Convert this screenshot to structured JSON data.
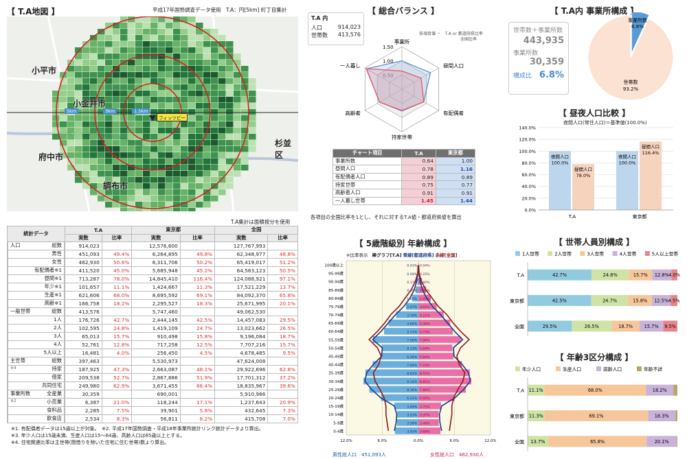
{
  "map": {
    "title": "【 T.A地図 】",
    "note": "平成17年国勢調査データ使用　T.A：円[5km] 町丁目集計",
    "place_labels": [
      "小平市",
      "小金井市",
      "府中市",
      "調布市",
      "杉並区"
    ],
    "ring_labels": [
      "5km",
      "3km",
      "1.5km"
    ],
    "center_label": "フィッツビー",
    "footer_note": "T.A集計は面積按分を使用"
  },
  "stats_table": {
    "columns": [
      "統計データ",
      "T.A",
      "東京都",
      "全国"
    ],
    "sub_columns": [
      "実数",
      "比率"
    ],
    "groups": [
      {
        "label": "人口",
        "note": "",
        "rows": [
          {
            "label": "総数",
            "v": [
              "914,023",
              "",
              "12,576,600",
              "",
              "127,767,993",
              ""
            ]
          },
          {
            "label": "男性",
            "v": [
              "451,093",
              "49.4%",
              "6,264,895",
              "49.8%",
              "62,348,977",
              "48.8%"
            ]
          },
          {
            "label": "女性",
            "v": [
              "462,930",
              "50.6%",
              "6,311,706",
              "50.2%",
              "65,419,017",
              "51.2%"
            ]
          },
          {
            "label": "有配偶者※1",
            "v": [
              "411,520",
              "45.0%",
              "5,685,948",
              "45.2%",
              "64,583,123",
              "50.5%"
            ]
          },
          {
            "label": "昼間※1",
            "v": [
              "713,287",
              "78.0%",
              "14,845,410",
              "116.4%",
              "124,088,921",
              "97.1%"
            ]
          },
          {
            "label": "年少※1",
            "v": [
              "101,657",
              "11.1%",
              "1,424,667",
              "11.3%",
              "17,521,229",
              "13.7%"
            ]
          },
          {
            "label": "生産※1",
            "v": [
              "621,606",
              "68.0%",
              "8,695,592",
              "69.1%",
              "84,092,370",
              "65.8%"
            ]
          },
          {
            "label": "高齢※1",
            "v": [
              "166,758",
              "18.2%",
              "2,295,527",
              "18.3%",
              "25,671,995",
              "20.1%"
            ]
          }
        ]
      },
      {
        "label": "一般世帯",
        "note": "",
        "rows": [
          {
            "label": "総数",
            "v": [
              "413,576",
              "",
              "5,747,460",
              "",
              "49,062,530",
              ""
            ]
          },
          {
            "label": "1人",
            "v": [
              "176,726",
              "42.7%",
              "2,444,145",
              "42.5%",
              "14,457,083",
              "29.5%"
            ]
          },
          {
            "label": "2人",
            "v": [
              "102,595",
              "24.8%",
              "1,419,109",
              "24.7%",
              "13,023,662",
              "26.5%"
            ]
          },
          {
            "label": "3人",
            "v": [
              "65,013",
              "15.7%",
              "910,498",
              "15.8%",
              "9,196,084",
              "18.7%"
            ]
          },
          {
            "label": "4人",
            "v": [
              "52,761",
              "12.8%",
              "717,258",
              "12.5%",
              "7,707,216",
              "15.7%"
            ]
          },
          {
            "label": "5人以上",
            "v": [
              "16,481",
              "4.0%",
              "256,450",
              "4.5%",
              "4,678,485",
              "9.5%"
            ]
          }
        ]
      },
      {
        "label": "主世帯",
        "note": "※4",
        "rows": [
          {
            "label": "総数",
            "v": [
              "397,463",
              "",
              "5,530,973",
              "",
              "47,624,008",
              ""
            ]
          },
          {
            "label": "持家",
            "v": [
              "187,925",
              "47.3%",
              "2,663,087",
              "48.1%",
              "29,922,696",
              "62.8%"
            ]
          },
          {
            "label": "借家",
            "v": [
              "209,538",
              "52.7%",
              "2,867,886",
              "51.9%",
              "17,701,312",
              "37.2%"
            ]
          },
          {
            "label": "共同住宅",
            "v": [
              "249,980",
              "62.9%",
              "3,671,455",
              "66.4%",
              "18,835,967",
              "39.6%"
            ]
          }
        ]
      },
      {
        "label": "事業所数",
        "note": "※2",
        "rows": [
          {
            "label": "全産業",
            "v": [
              "30,359",
              "",
              "690,001",
              "",
              "5,910,986",
              ""
            ]
          },
          {
            "label": "小売業",
            "v": [
              "6,387",
              "21.0%",
              "118,244",
              "17.1%",
              "1,237,643",
              "20.9%"
            ]
          },
          {
            "label": "食料品",
            "v": [
              "2,285",
              "7.5%",
              "39,901",
              "5.8%",
              "432,645",
              "7.3%"
            ]
          },
          {
            "label": "飲食店",
            "v": [
              "2,534",
              "8.3%",
              "56,811",
              "8.2%",
              "415,708",
              "7.0%"
            ]
          }
        ]
      }
    ],
    "footnotes": [
      "※1. 有配偶者データは15歳以上が対象。　※2. 平成17年国勢調査・平成18年事業所統計リンク統計データより算出。",
      "※3. 年少人口は15歳未満、生産人口は15～64歳、高齢人口は65歳以上とする。",
      "※4. 住宅関連比率は主世帯(間借りを除いた住宅に住む世帯)数より算出。"
    ]
  },
  "balance": {
    "title": "【 総合バランス 】",
    "box_title": "T.A 内",
    "pop_label": "人口",
    "pop_value": "914,023",
    "hh_label": "世帯数",
    "hh_value": "413,576",
    "legend_note": "各項目値 ・　T.A or 都道府県比率",
    "legend_note2": "全国比率",
    "axes": [
      "事業所",
      "昼間人口",
      "有配偶者",
      "持家世帯",
      "高齢者",
      "一人暮し"
    ],
    "rings": [
      "1.50",
      "1.00",
      "0.50"
    ],
    "table_headers": [
      "チャート項目",
      "T.A",
      "東京都"
    ],
    "rows": [
      {
        "label": "事業所数",
        "ta": "0.64",
        "tokyo": "1.00"
      },
      {
        "label": "昼間人口",
        "ta": "0.78",
        "tokyo": "1.16"
      },
      {
        "label": "有配偶者人口",
        "ta": "0.89",
        "tokyo": "0.89"
      },
      {
        "label": "持家世帯",
        "ta": "0.75",
        "tokyo": "0.77"
      },
      {
        "label": "高齢者人口",
        "ta": "0.91",
        "tokyo": "0.91"
      },
      {
        "label": "一人暮し世帯",
        "ta": "1.45",
        "tokyo": "1.44"
      }
    ],
    "caption": "各項目の全国比率を1とし、それに対するT.A値・都道府県値を算出",
    "colors": {
      "ta": "#e05a6a",
      "tokyo": "#5b8fd6"
    }
  },
  "pyramid": {
    "title": "【 5歳階級別 年齢構成 】",
    "legend": [
      "※比率表示",
      "棒グラフ[T.A]",
      "青線[都道府県]",
      "赤線[全国]"
    ],
    "age_labels": [
      "100歳以上",
      "95-99歳",
      "90-94歳",
      "85-89歳",
      "80-84歳",
      "75-79歳",
      "70-74歳",
      "65-69歳",
      "60-64歳",
      "55-59歳",
      "50-54歳",
      "45-49歳",
      "40-44歳",
      "35-39歳",
      "30-34歳",
      "25-29歳",
      "20-24歳",
      "15-19歳",
      "10-14歳",
      "5-9歳",
      "0-4歳"
    ],
    "male_labels": [
      "0.01%",
      "0.04%",
      "0.17%",
      "0.45%",
      "1.05%",
      "2.07%",
      "3.70%",
      "4.96%",
      "5.71%",
      "7.56%",
      "6.13%",
      "6.26%",
      "7.60%",
      "8.81%",
      "9.14%",
      "8.16%",
      "6.22%",
      "3.99%",
      "3.53%",
      "3.59%",
      "3.91%"
    ],
    "female_labels": [
      "0.04%",
      "0.22%",
      "0.60%",
      "1.28%",
      "2.07%",
      "3.05%",
      "4.21%",
      "5.30%",
      "5.73%",
      "7.06%",
      "5.64%",
      "5.84%",
      "7.24%",
      "8.55%",
      "8.81%",
      "7.89%",
      "6.05%",
      "3.75%",
      "3.37%",
      "3.40%",
      "3.68%"
    ],
    "x_ticks": [
      "12.0%",
      "6.0%",
      "0.0%",
      "6.0%",
      "12.0%"
    ],
    "male_total_label": "男性総人口",
    "male_total": "451,093人",
    "female_total_label": "女性総人口",
    "female_total": "462,930人",
    "colors": {
      "male": "#6aaee0",
      "female": "#e86fa8",
      "tokyo": "#1a3a8a",
      "japan": "#8b1a1a"
    }
  },
  "office": {
    "title": "【 T.A内 事業所構成 】",
    "l1": "世帯数＋事業所数",
    "v1": "443,935",
    "l2": "事業所数",
    "v2": "30,359",
    "l3": "構成比",
    "v3": "6.8%",
    "pie_labels": [
      {
        "name": "事業所数",
        "pct": "6.8%"
      },
      {
        "name": "世帯数",
        "pct": "93.2%"
      }
    ],
    "chart_data": {
      "type": "pie",
      "categories": [
        "事業所数",
        "世帯数"
      ],
      "values": [
        6.8,
        93.2
      ]
    }
  },
  "daynight": {
    "title": "【 昼夜人口比較 】",
    "subtitle": "夜間人口(常住人口)＝基準値(100.0%)",
    "y_ticks": [
      "140.0%",
      "120.0%",
      "100.0%",
      "80.0%",
      "60.0%",
      "40.0%",
      "20.0%",
      "0.0%"
    ],
    "chart_data": {
      "type": "bar",
      "categories": [
        "T.A",
        "東京都"
      ],
      "series": [
        {
          "name": "夜間人口",
          "values": [
            100.0,
            100.0
          ]
        },
        {
          "name": "昼間人口",
          "values": [
            78.0,
            116.4
          ]
        }
      ],
      "ylim": [
        0,
        140
      ]
    },
    "bar_labels": [
      [
        "夜間人口",
        "100.0%"
      ],
      [
        "昼間人口",
        "78.0%"
      ],
      [
        "夜間人口",
        "100.0%"
      ],
      [
        "昼間人口",
        "116.4%"
      ]
    ],
    "colors": [
      "#bcd6ee",
      "#f5d3bd"
    ]
  },
  "household": {
    "title": "【 世帯人員別構成 】",
    "chart_data": {
      "type": "bar",
      "categories": [
        "T.A",
        "東京都",
        "全国"
      ],
      "series": [
        {
          "name": "1人世帯",
          "values": [
            42.7,
            42.5,
            29.5
          ]
        },
        {
          "name": "2人世帯",
          "values": [
            24.8,
            24.7,
            26.5
          ]
        },
        {
          "name": "3人世帯",
          "values": [
            15.7,
            15.8,
            18.7
          ]
        },
        {
          "name": "4人世帯",
          "values": [
            12.8,
            12.5,
            15.7
          ]
        },
        {
          "name": "5人以上世帯",
          "values": [
            4.0,
            4.5,
            9.5
          ]
        }
      ]
    },
    "value_labels": [
      [
        "42.7%",
        "24.8%",
        "15.7%",
        "12.8%",
        "4.0%"
      ],
      [
        "42.5%",
        "24.7%",
        "15.8%",
        "12.5%",
        "4.5%"
      ],
      [
        "29.5%",
        "26.5%",
        "18.7%",
        "15.7%",
        "9.5%"
      ]
    ],
    "colors": [
      "#92cbe0",
      "#cfe3a6",
      "#f6c79b",
      "#c9b3d9",
      "#e8848c"
    ]
  },
  "agegroup": {
    "title": "【 年齢3区分構成 】",
    "chart_data": {
      "type": "bar",
      "categories": [
        "T.A",
        "東京都",
        "全国"
      ],
      "series": [
        {
          "name": "年少人口",
          "values": [
            11.1,
            11.3,
            13.7
          ]
        },
        {
          "name": "生産人口",
          "values": [
            68.0,
            69.1,
            65.8
          ]
        },
        {
          "name": "高齢人口",
          "values": [
            18.2,
            18.3,
            20.1
          ]
        },
        {
          "name": "年齢不詳",
          "values": [
            2.7,
            1.3,
            0.4
          ]
        }
      ]
    },
    "value_labels": [
      [
        "11.1%",
        "68.0%",
        "18.2%"
      ],
      [
        "11.3%",
        "69.1%",
        "18.3%"
      ],
      [
        "13.7%",
        "65.8%",
        "20.1%"
      ]
    ],
    "colors": [
      "#cfe3a6",
      "#f6c79b",
      "#c9b3d9",
      "#b9a56a"
    ]
  }
}
